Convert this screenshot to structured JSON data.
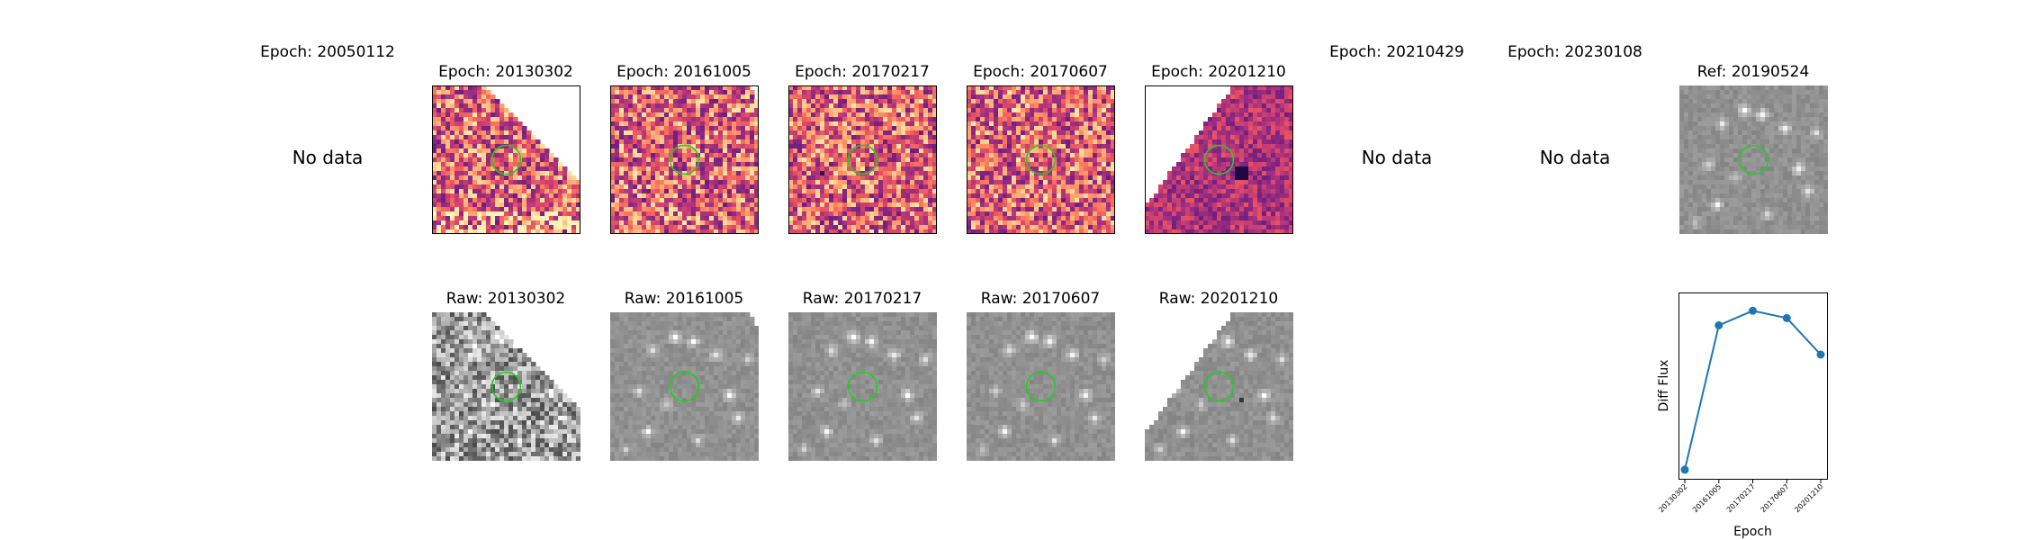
{
  "colors": {
    "circle": "#22cc22",
    "line": "#1f77b4",
    "diff_colormap": [
      "#1a0838",
      "#3b0f70",
      "#641a80",
      "#8c2981",
      "#b5367a",
      "#de4968",
      "#f66e5c",
      "#fe9f6d",
      "#fecf92",
      "#fcfdbf"
    ],
    "raw_colormap": [
      "#2a2a2a",
      "#ffffff"
    ]
  },
  "top_row": [
    {
      "title": "Epoch: 20050112",
      "status": "No data"
    },
    {
      "title": "Epoch: 20130302",
      "status": "diff"
    },
    {
      "title": "Epoch: 20161005",
      "status": "diff"
    },
    {
      "title": "Epoch: 20170217",
      "status": "diff"
    },
    {
      "title": "Epoch: 20170607",
      "status": "diff"
    },
    {
      "title": "Epoch: 20201210",
      "status": "diff"
    },
    {
      "title": "Epoch: 20210429",
      "status": "No data"
    },
    {
      "title": "Epoch: 20230108",
      "status": "No data"
    },
    {
      "title": "Ref: 20190524",
      "status": "ref"
    }
  ],
  "bottom_row": [
    {
      "title": "Raw: 20130302"
    },
    {
      "title": "Raw: 20161005"
    },
    {
      "title": "Raw: 20170217"
    },
    {
      "title": "Raw: 20170607"
    },
    {
      "title": "Raw: 20201210"
    }
  ],
  "chart_data": {
    "type": "line",
    "title": "",
    "xlabel": "Epoch",
    "ylabel": "Diff Flux",
    "categories": [
      "20130302",
      "20161005",
      "20170217",
      "20170607",
      "20201210"
    ],
    "values": [
      0.0,
      0.79,
      0.87,
      0.83,
      0.63
    ],
    "ylim": [
      -0.05,
      0.97
    ],
    "grid": false,
    "y_ticks_shown": false
  }
}
